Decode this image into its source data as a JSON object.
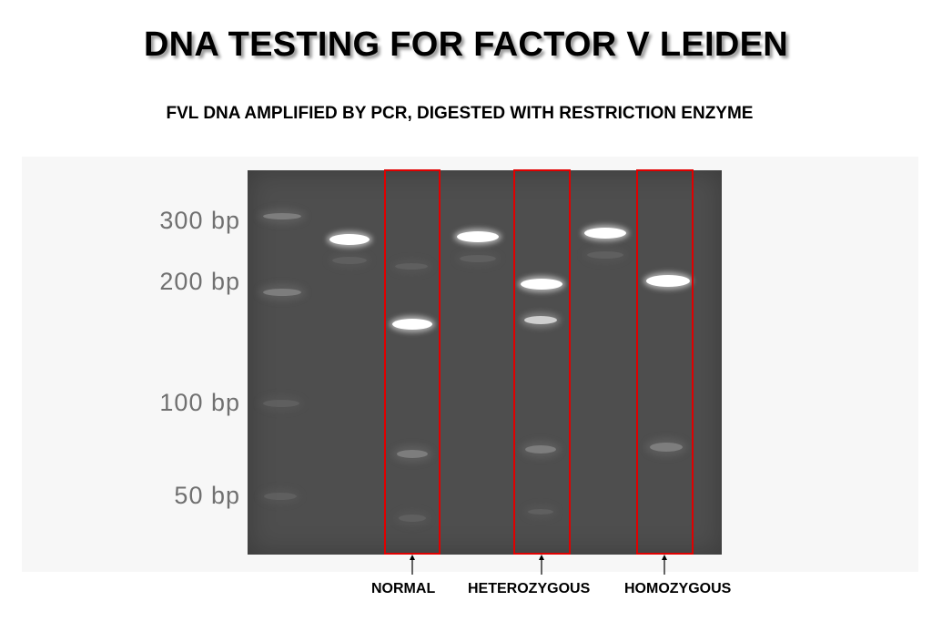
{
  "title": "DNA TESTING FOR FACTOR V LEIDEN",
  "subtitle": "FVL DNA AMPLIFIED BY PCR, DIGESTED WITH RESTRICTION ENZYME",
  "ladder_labels": [
    "300 bp",
    "200 bp",
    "100 bp",
    "50 bp"
  ],
  "lane_labels": {
    "normal": "NORMAL",
    "heterozygous": "HETEROZYGOUS",
    "homozygous": "HOMOZYGOUS"
  },
  "colors": {
    "highlight_box": "#e00000",
    "gel_background": "#4e4e4e",
    "band": "#ffffff"
  }
}
